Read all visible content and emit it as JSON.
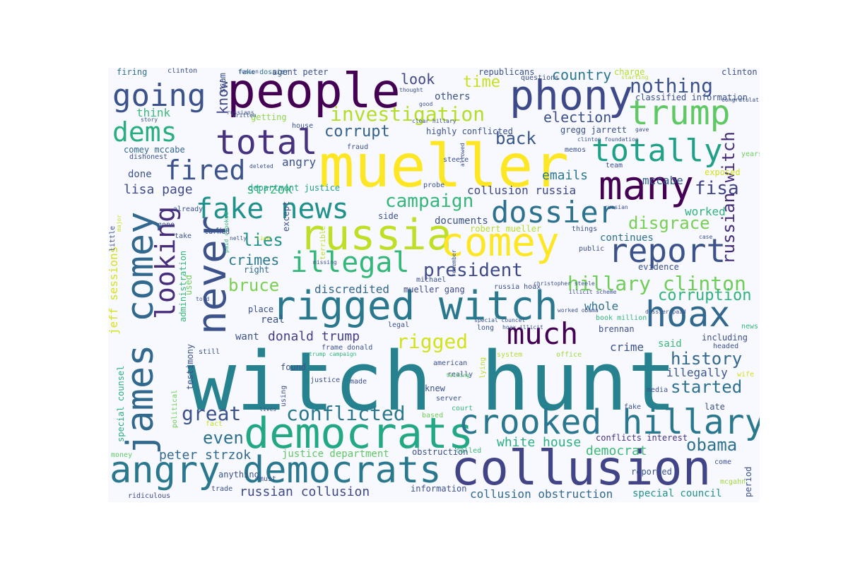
{
  "words": [
    {
      "text": "witch hunt",
      "color": "#26828e"
    },
    {
      "text": "mueller",
      "color": "#fde725"
    },
    {
      "text": "collusion",
      "color": "#414487"
    },
    {
      "text": "people",
      "color": "#440154"
    },
    {
      "text": "rigged witch",
      "color": "#2a788e"
    },
    {
      "text": "russia",
      "color": "#bddf26"
    },
    {
      "text": "democrats",
      "color": "#22a884"
    },
    {
      "text": "angry democrats",
      "color": "#2a788e"
    },
    {
      "text": "never",
      "color": "#3b528b"
    },
    {
      "text": "james comey",
      "color": "#31688e"
    },
    {
      "text": "comey",
      "color": "#fde725"
    },
    {
      "text": "crooked hillary",
      "color": "#2a788e"
    },
    {
      "text": "phony",
      "color": "#3e4989"
    },
    {
      "text": "trump",
      "color": "#5ec962"
    },
    {
      "text": "many",
      "color": "#440154"
    },
    {
      "text": "hoax",
      "color": "#31688e"
    },
    {
      "text": "total",
      "color": "#46327e"
    },
    {
      "text": "totally",
      "color": "#1fa187"
    },
    {
      "text": "report",
      "color": "#3b528b"
    },
    {
      "text": "going",
      "color": "#3b528b"
    },
    {
      "text": "much",
      "color": "#440154"
    },
    {
      "text": "dossier",
      "color": "#2c728e"
    },
    {
      "text": "fake news",
      "color": "#21918c"
    },
    {
      "text": "illegal",
      "color": "#35b779"
    },
    {
      "text": "dems",
      "color": "#29af7f"
    },
    {
      "text": "fired",
      "color": "#3b528b"
    },
    {
      "text": "looking",
      "color": "#472d7b"
    },
    {
      "text": "investigation",
      "color": "#b5de2b"
    },
    {
      "text": "conflicted",
      "color": "#2a788e"
    },
    {
      "text": "hillary clinton",
      "color": "#6ece58"
    },
    {
      "text": "nothing",
      "color": "#3b528b"
    },
    {
      "text": "russian witch",
      "color": "#472c7a"
    },
    {
      "text": "president",
      "color": "#3e4a89"
    },
    {
      "text": "campaign",
      "color": "#35b779"
    },
    {
      "text": "disgrace",
      "color": "#75d054"
    },
    {
      "text": "rigged",
      "color": "#d2e21b"
    },
    {
      "text": "corruption",
      "color": "#2fb47c"
    },
    {
      "text": "history",
      "color": "#31688e"
    },
    {
      "text": "started",
      "color": "#2c728e"
    },
    {
      "text": "great",
      "color": "#3b528b"
    },
    {
      "text": "fisa",
      "color": "#414487"
    },
    {
      "text": "obama",
      "color": "#2c728e"
    },
    {
      "text": "bruce",
      "color": "#7ad151"
    },
    {
      "text": "lies",
      "color": "#21918c"
    },
    {
      "text": "back",
      "color": "#39568c"
    },
    {
      "text": "corrupt",
      "color": "#33638d"
    },
    {
      "text": "time",
      "color": "#c8e020"
    },
    {
      "text": "election",
      "color": "#3b528b"
    },
    {
      "text": "country",
      "color": "#2a788e"
    },
    {
      "text": "even",
      "color": "#2c728e"
    },
    {
      "text": "know",
      "color": "#3f4788"
    },
    {
      "text": "look",
      "color": "#3f4788"
    },
    {
      "text": "crimes",
      "color": "#2a788e"
    },
    {
      "text": "white house",
      "color": "#2ab07f"
    },
    {
      "text": "democrat",
      "color": "#3aba76"
    },
    {
      "text": "donald trump",
      "color": "#433e85"
    },
    {
      "text": "russian collusion",
      "color": "#3e4989"
    },
    {
      "text": "peter strzok",
      "color": "#31688e"
    },
    {
      "text": "lisa page",
      "color": "#3e4989"
    },
    {
      "text": "strzok",
      "color": "#3aba76"
    },
    {
      "text": "emails",
      "color": "#2a788e"
    },
    {
      "text": "mccabe",
      "color": "#355f8d"
    },
    {
      "text": "worked",
      "color": "#2fb47c"
    },
    {
      "text": "jeff sessions",
      "color": "#d5e21a"
    },
    {
      "text": "think",
      "color": "#3aba76"
    },
    {
      "text": "angry",
      "color": "#3b528b"
    },
    {
      "text": "collusion russia",
      "color": "#3e4989"
    },
    {
      "text": "discredited",
      "color": "#31688e"
    },
    {
      "text": "crime",
      "color": "#3b528b"
    },
    {
      "text": "whole",
      "color": "#2c728e"
    },
    {
      "text": "illegally",
      "color": "#39568c"
    },
    {
      "text": "collusion obstruction",
      "color": "#31688e"
    },
    {
      "text": "special council",
      "color": "#21918c"
    },
    {
      "text": "others",
      "color": "#3b528b"
    },
    {
      "text": "documents",
      "color": "#3b528b"
    },
    {
      "text": "done",
      "color": "#3b528b"
    },
    {
      "text": "continues",
      "color": "#2c728e"
    },
    {
      "text": "said",
      "color": "#3aba76"
    },
    {
      "text": "real",
      "color": "#3b528b"
    },
    {
      "text": "want",
      "color": "#3b528b"
    },
    {
      "text": "justice department",
      "color": "#5ec962"
    },
    {
      "text": "department justice",
      "color": "#1fa187"
    },
    {
      "text": "robert mueller",
      "color": "#b5de2b"
    },
    {
      "text": "mueller gang",
      "color": "#3e4989"
    },
    {
      "text": "comey mccabe",
      "color": "#31688e"
    },
    {
      "text": "getting",
      "color": "#8fd744"
    },
    {
      "text": "highly conflicted",
      "color": "#3b528b"
    },
    {
      "text": "gregg jarrett",
      "color": "#3b528b"
    },
    {
      "text": "except",
      "color": "#3b528b"
    },
    {
      "text": "side",
      "color": "#3b528b"
    },
    {
      "text": "right",
      "color": "#31688e"
    },
    {
      "text": "place",
      "color": "#3b528b"
    },
    {
      "text": "used",
      "color": "#6ece58"
    },
    {
      "text": "firing",
      "color": "#2c728e"
    },
    {
      "text": "scam",
      "color": "#3b528b"
    },
    {
      "text": "clinton",
      "color": "#3b528b"
    },
    {
      "text": "fake dossier",
      "color": "#2c728e"
    },
    {
      "text": "agent peter",
      "color": "#3b528b"
    },
    {
      "text": "republicans",
      "color": "#3b528b"
    },
    {
      "text": "charge",
      "color": "#b5de2b"
    },
    {
      "text": "clinton frame",
      "color": "#3b528b"
    },
    {
      "text": "questions",
      "color": "#3b528b"
    },
    {
      "text": "classified information",
      "color": "#3b528b"
    },
    {
      "text": "evidence",
      "color": "#3b528b"
    },
    {
      "text": "information",
      "color": "#3b528b"
    },
    {
      "text": "conflicts interest",
      "color": "#46327e"
    },
    {
      "text": "reported",
      "color": "#3b528b"
    },
    {
      "text": "obstruction",
      "color": "#3b528b"
    },
    {
      "text": "called",
      "color": "#3aba76"
    },
    {
      "text": "brennan",
      "color": "#3b528b"
    },
    {
      "text": "book million",
      "color": "#35b779"
    },
    {
      "text": "frame donald",
      "color": "#3b528b"
    },
    {
      "text": "legal",
      "color": "#3b528b"
    },
    {
      "text": "long",
      "color": "#3b528b"
    },
    {
      "text": "including",
      "color": "#3b528b"
    },
    {
      "text": "headed",
      "color": "#3b528b"
    },
    {
      "text": "exposed",
      "color": "#d2e21b"
    },
    {
      "text": "team",
      "color": "#3b528b"
    },
    {
      "text": "memos",
      "color": "#3b528b"
    },
    {
      "text": "years",
      "color": "#6ece58"
    },
    {
      "text": "period",
      "color": "#3b528b"
    },
    {
      "text": "mcgahn",
      "color": "#a0da39"
    },
    {
      "text": "come",
      "color": "#3b528b"
    },
    {
      "text": "late",
      "color": "#3b528b"
    },
    {
      "text": "fake",
      "color": "#3b528b"
    },
    {
      "text": "media",
      "color": "#3b528b"
    },
    {
      "text": "wife",
      "color": "#d5e21a"
    },
    {
      "text": "news media",
      "color": "#35b779"
    },
    {
      "text": "special counsel",
      "color": "#29af7f"
    },
    {
      "text": "testimony",
      "color": "#3b528b"
    },
    {
      "text": "political",
      "color": "#6ece58"
    },
    {
      "text": "administration",
      "color": "#35b779"
    },
    {
      "text": "ridiculous",
      "color": "#3e4989"
    },
    {
      "text": "money",
      "color": "#5ec962"
    },
    {
      "text": "fact",
      "color": "#c8e020"
    },
    {
      "text": "anything",
      "color": "#3b528b"
    },
    {
      "text": "still",
      "color": "#3b528b"
    },
    {
      "text": "trade",
      "color": "#3b528b"
    },
    {
      "text": "must",
      "color": "#3b528b"
    },
    {
      "text": "found",
      "color": "#3b528b"
    },
    {
      "text": "justice",
      "color": "#3b528b"
    },
    {
      "text": "made",
      "color": "#3b528b"
    },
    {
      "text": "really",
      "color": "#3b528b"
    },
    {
      "text": "knew",
      "color": "#3b528b"
    },
    {
      "text": "server",
      "color": "#3b528b"
    },
    {
      "text": "american",
      "color": "#3b528b"
    },
    {
      "text": "court",
      "color": "#35b779"
    },
    {
      "text": "based",
      "color": "#6ece58"
    },
    {
      "text": "office",
      "color": "#a0da39"
    },
    {
      "text": "system",
      "color": "#b5de2b"
    },
    {
      "text": "talking",
      "color": "#5ec962"
    },
    {
      "text": "trump campaign",
      "color": "#35b779"
    },
    {
      "text": "lying",
      "color": "#b5de2b"
    },
    {
      "text": "using",
      "color": "#3b528b"
    },
    {
      "text": "lives",
      "color": "#3b528b"
    },
    {
      "text": "russia hoax",
      "color": "#3b528b"
    },
    {
      "text": "michael",
      "color": "#3b528b"
    },
    {
      "text": "missing",
      "color": "#3b528b"
    },
    {
      "text": "remember",
      "color": "#3b528b"
    },
    {
      "text": "christopher steele",
      "color": "#3b528b"
    },
    {
      "text": "illicit scheme",
      "color": "#3b528b"
    },
    {
      "text": "dossier paid",
      "color": "#3b528b"
    },
    {
      "text": "hoax illicit",
      "color": "#3b528b"
    },
    {
      "text": "special councel",
      "color": "#3b528b"
    },
    {
      "text": "told",
      "color": "#3b528b"
    },
    {
      "text": "nelly",
      "color": "#3b528b"
    },
    {
      "text": "lied",
      "color": "#c8e020"
    },
    {
      "text": "find",
      "color": "#3b528b"
    },
    {
      "text": "turned",
      "color": "#3b528b"
    },
    {
      "text": "paid crooked",
      "color": "#35b779"
    },
    {
      "text": "little",
      "color": "#3b528b"
    },
    {
      "text": "major",
      "color": "#c8e020"
    },
    {
      "text": "already",
      "color": "#3b528b"
    },
    {
      "text": "gone",
      "color": "#3b528b"
    },
    {
      "text": "take",
      "color": "#3b528b"
    },
    {
      "text": "terrible",
      "color": "#b5de2b"
    },
    {
      "text": "probe",
      "color": "#3b528b"
    },
    {
      "text": "steele",
      "color": "#3b528b"
    },
    {
      "text": "allowed",
      "color": "#3b528b"
    },
    {
      "text": "dishonest",
      "color": "#3b528b"
    },
    {
      "text": "deleted",
      "color": "#3b528b"
    },
    {
      "text": "fraud",
      "color": "#3b528b"
    },
    {
      "text": "house",
      "color": "#3b528b"
    },
    {
      "text": "russians",
      "color": "#3b528b"
    },
    {
      "text": "story",
      "color": "#3b528b"
    },
    {
      "text": "written",
      "color": "#3b528b"
    },
    {
      "text": "good",
      "color": "#3b528b"
    },
    {
      "text": "thought",
      "color": "#3b528b"
    },
    {
      "text": "fusion",
      "color": "#3b528b"
    },
    {
      "text": "starting",
      "color": "#b5de2b"
    },
    {
      "text": "congratulations",
      "color": "#3b528b"
    },
    {
      "text": "gave",
      "color": "#3b528b"
    },
    {
      "text": "clinton foundation",
      "color": "#3b528b"
    },
    {
      "text": "clear hillary",
      "color": "#3b528b"
    },
    {
      "text": "worked obama",
      "color": "#3b528b"
    },
    {
      "text": "russian",
      "color": "#3b528b"
    },
    {
      "text": "things",
      "color": "#3b528b"
    },
    {
      "text": "public",
      "color": "#3b528b"
    },
    {
      "text": "case",
      "color": "#3b528b"
    }
  ]
}
